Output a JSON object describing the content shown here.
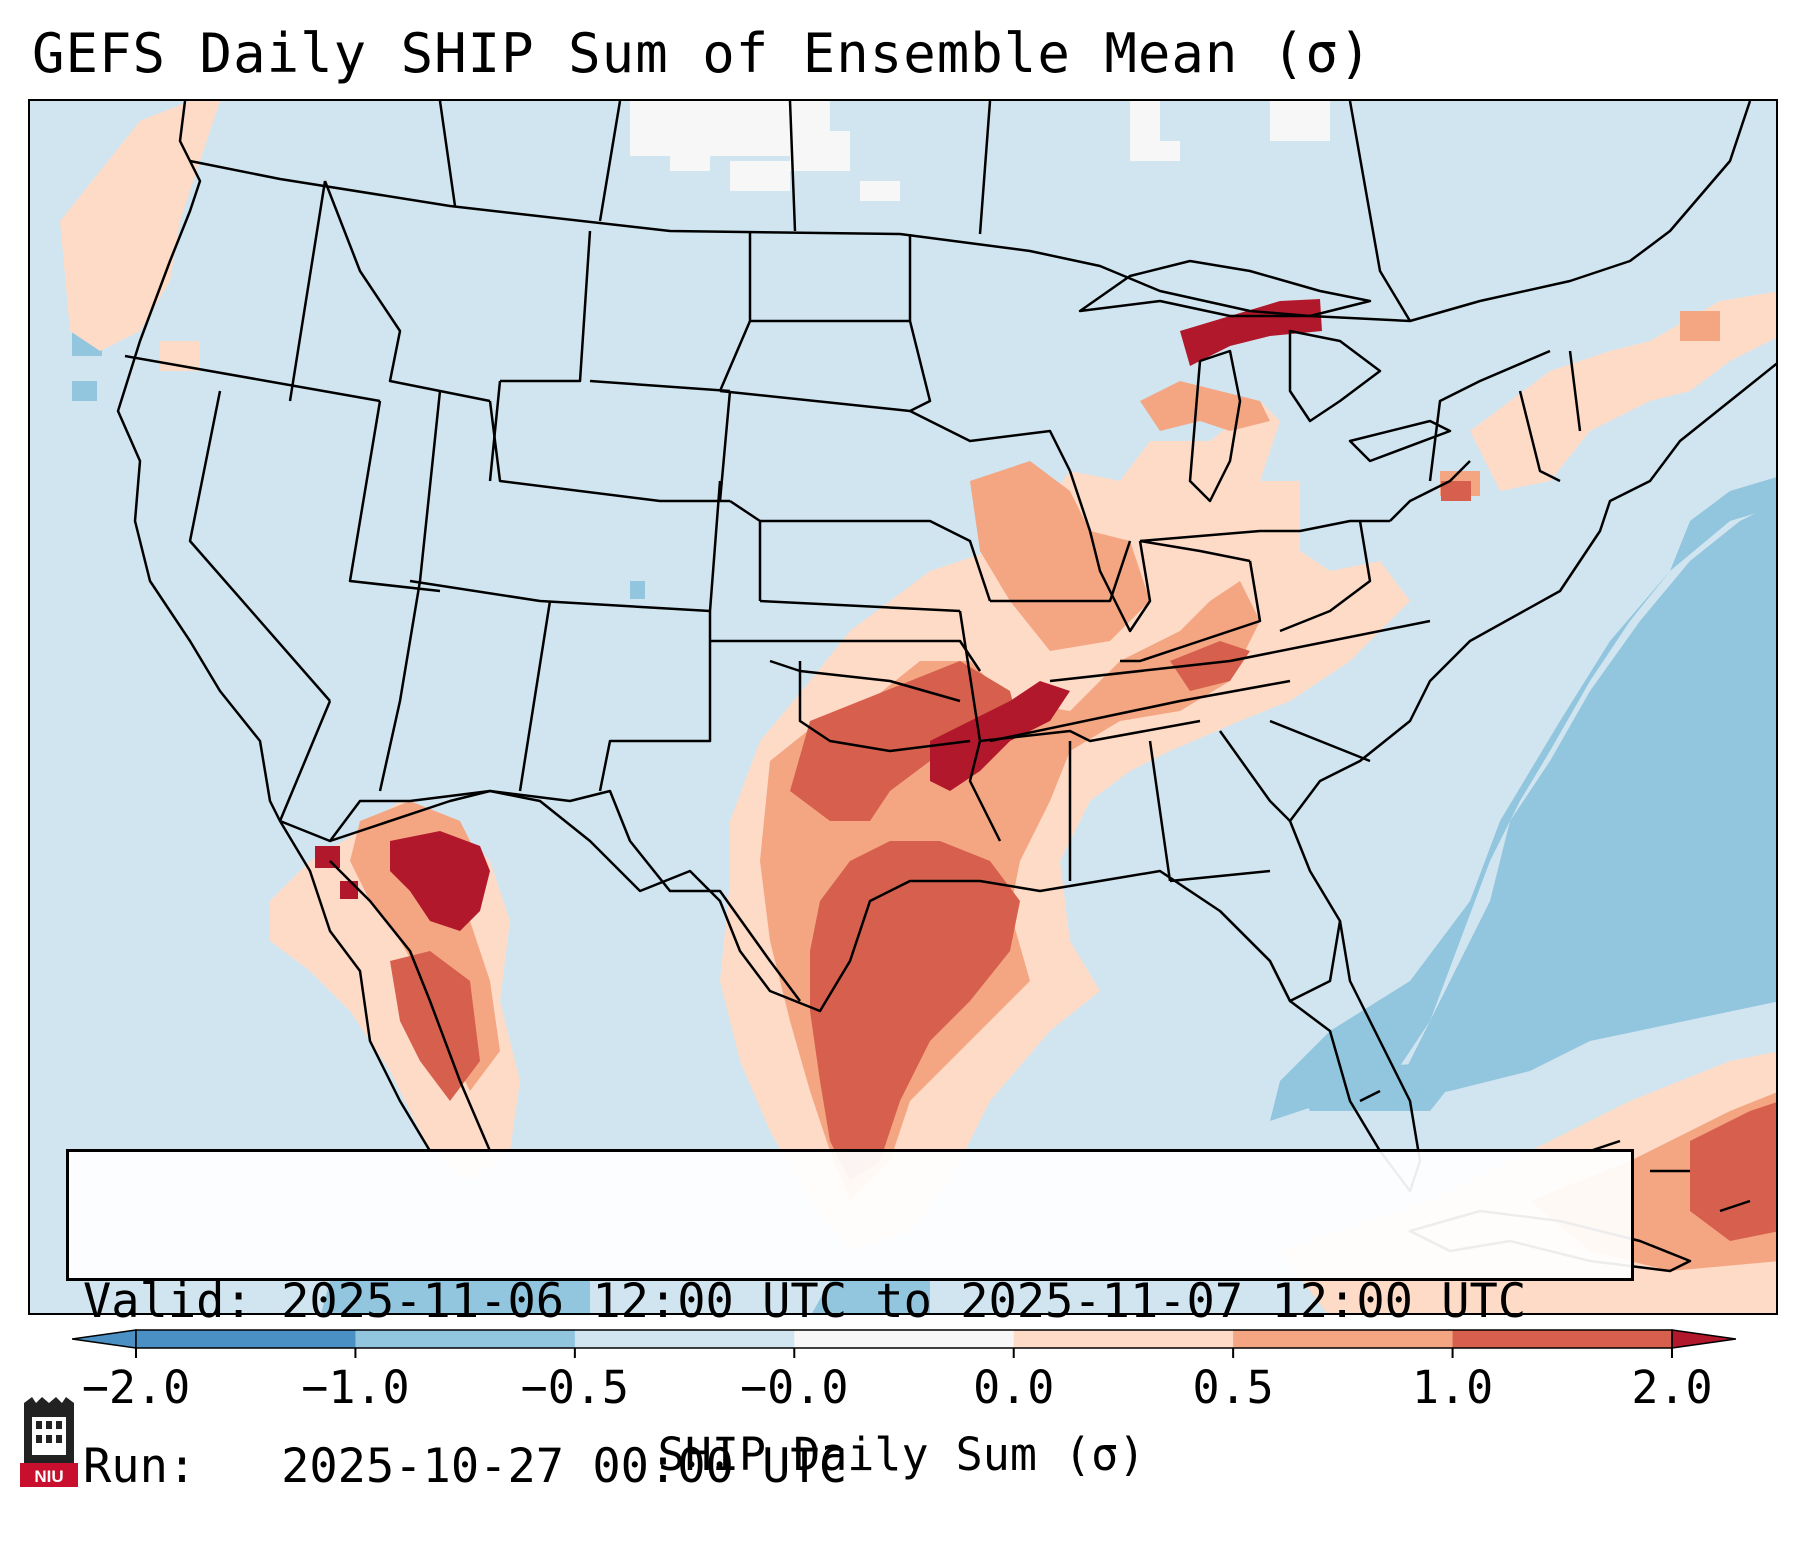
{
  "title": "GEFS Daily SHIP Sum of Ensemble Mean (σ)",
  "info": {
    "valid_line": "Valid: 2025-11-06 12:00 UTC to 2025-11-07 12:00 UTC",
    "run_line": "Run:   2025-10-27 00:00 UTC"
  },
  "colorbar": {
    "label": "SHIP Daily Sum (σ)",
    "ticks": [
      "−2.0",
      "−1.0",
      "−0.5",
      "−0.0",
      "0.0",
      "0.5",
      "1.0",
      "2.0"
    ],
    "colors": [
      "#4a90c4",
      "#92c5de",
      "#d1e5f0",
      "#f7f7f7",
      "#fddbc7",
      "#f4a582",
      "#d6604d",
      "#b2182b"
    ],
    "extend": "both"
  },
  "map": {
    "projection": "Lambert conformal, CONUS",
    "background_color": "#d1e5f0",
    "anomaly_regions": [
      {
        "name": "texas-oklahoma-plume",
        "level": "0.0 to 0.5"
      },
      {
        "name": "ozarks-core",
        "level": "1.0 to 2.0"
      },
      {
        "name": "ohio-valley",
        "level": "0.5 to 1.0"
      },
      {
        "name": "michigan-upper-peninsula",
        "level": "1.0 to 2.0"
      },
      {
        "name": "sonora-core",
        "level": "1.0 to 2.0"
      },
      {
        "name": "atlantic-offshore",
        "level": "-1.0 to -0.5"
      },
      {
        "name": "caribbean",
        "level": "0.5 to 1.0"
      }
    ]
  },
  "logo": {
    "text": "NIU"
  }
}
